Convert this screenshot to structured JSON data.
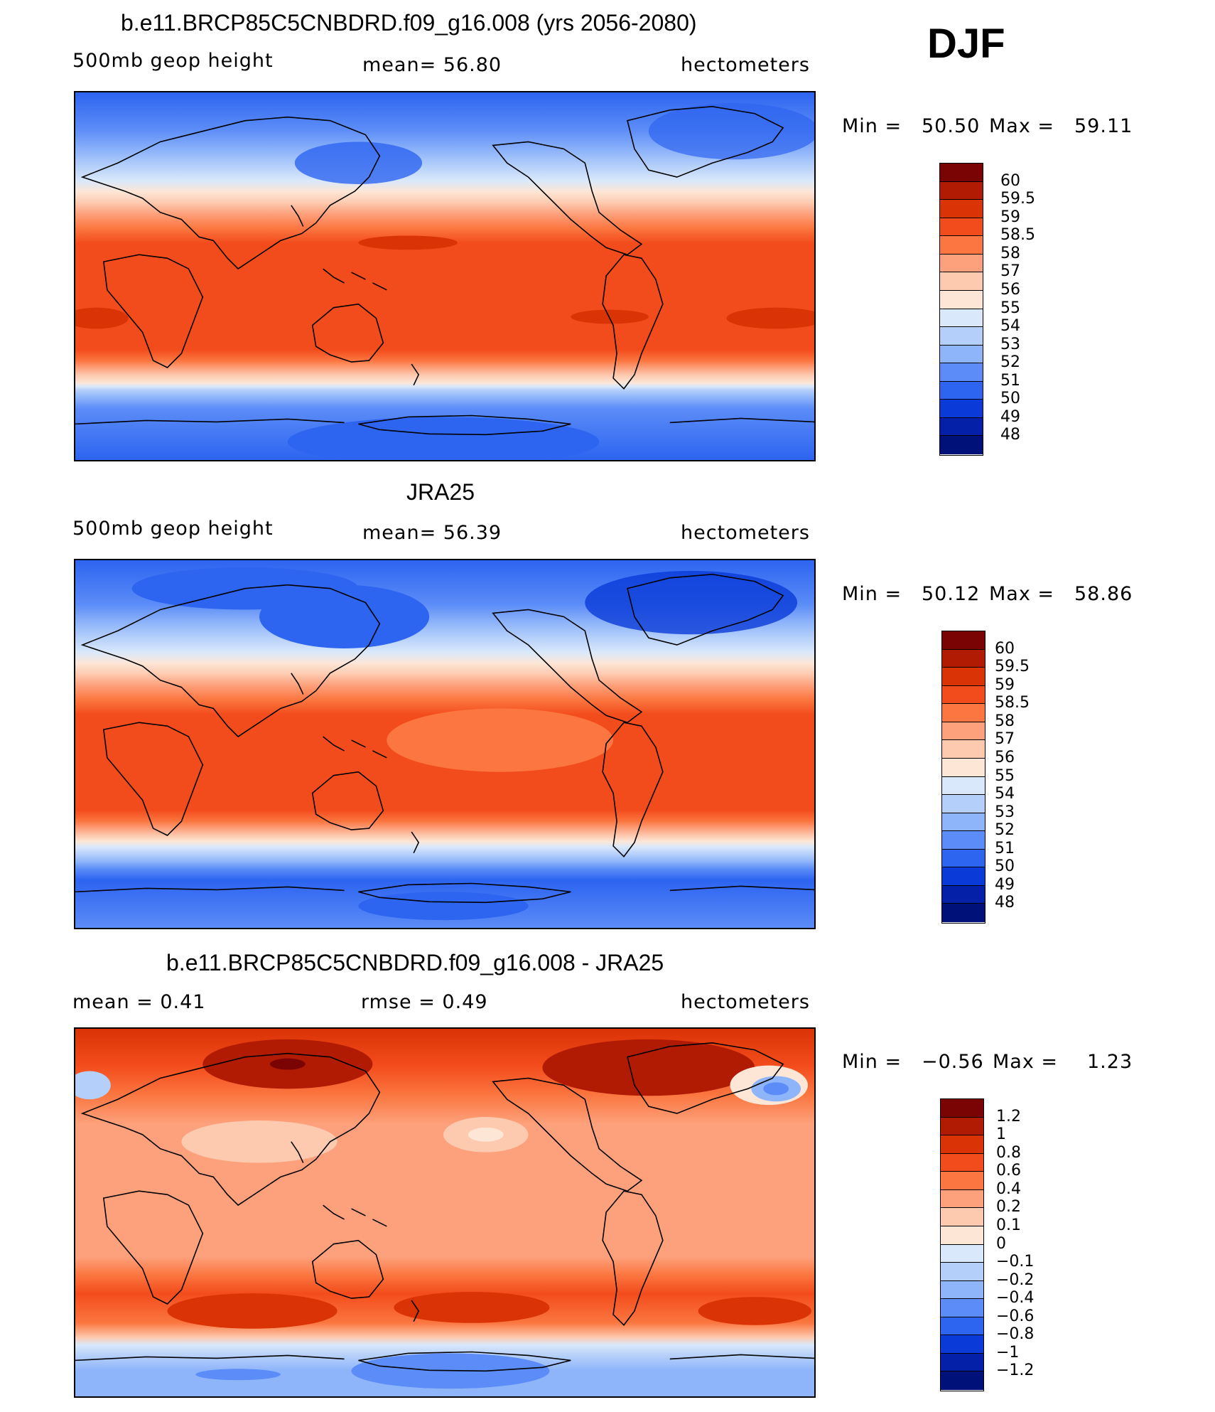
{
  "season": "DJF",
  "panels": [
    {
      "title": "b.e11.BRCP85C5CNBDRD.f09_g16.008 (yrs 2056-2080)",
      "left_label": "500mb geop height",
      "center_label": "mean=   56.80",
      "units": "hectometers",
      "min_label": "Min =",
      "min_value": "50.50",
      "max_label": "Max =",
      "max_value": "59.11",
      "colorbar_labels": [
        "60",
        "59.5",
        "59",
        "58.5",
        "58",
        "57",
        "56",
        "55",
        "54",
        "53",
        "52",
        "51",
        "50",
        "49",
        "48"
      ],
      "colorbar_colors": [
        "#7a0403",
        "#b11a03",
        "#d93306",
        "#f34c1c",
        "#fb7640",
        "#fda17c",
        "#fdcab0",
        "#fde6d6",
        "#d9e8fb",
        "#b4cffa",
        "#8eb4fa",
        "#5b8cf7",
        "#2d64f0",
        "#0a3bd8",
        "#0520a8",
        "#00117a"
      ]
    },
    {
      "title": "JRA25",
      "left_label": "500mb geop height",
      "center_label": "mean=   56.39",
      "units": "hectometers",
      "min_label": "Min =",
      "min_value": "50.12",
      "max_label": "Max =",
      "max_value": "58.86",
      "colorbar_labels": [
        "60",
        "59.5",
        "59",
        "58.5",
        "58",
        "57",
        "56",
        "55",
        "54",
        "53",
        "52",
        "51",
        "50",
        "49",
        "48"
      ],
      "colorbar_colors": [
        "#7a0403",
        "#b11a03",
        "#d93306",
        "#f34c1c",
        "#fb7640",
        "#fda17c",
        "#fdcab0",
        "#fde6d6",
        "#d9e8fb",
        "#b4cffa",
        "#8eb4fa",
        "#5b8cf7",
        "#2d64f0",
        "#0a3bd8",
        "#0520a8",
        "#00117a"
      ]
    },
    {
      "title": "b.e11.BRCP85C5CNBDRD.f09_g16.008 - JRA25",
      "left_label": "mean =     0.41",
      "center_label": "rmse =     0.49",
      "units": "hectometers",
      "min_label": "Min =",
      "min_value": "−0.56",
      "max_label": "Max =",
      "max_value": "1.23",
      "colorbar_labels": [
        "1.2",
        "1",
        "0.8",
        "0.6",
        "0.4",
        "0.2",
        "0.1",
        "0",
        "−0.1",
        "−0.2",
        "−0.4",
        "−0.6",
        "−0.8",
        "−1",
        "−1.2"
      ],
      "colorbar_colors": [
        "#7a0403",
        "#b11a03",
        "#d93306",
        "#f34c1c",
        "#fb7640",
        "#fda17c",
        "#fdcab0",
        "#fde6d6",
        "#d9e8fb",
        "#b4cffa",
        "#8eb4fa",
        "#5b8cf7",
        "#2d64f0",
        "#0a3bd8",
        "#0520a8",
        "#00117a"
      ]
    }
  ]
}
